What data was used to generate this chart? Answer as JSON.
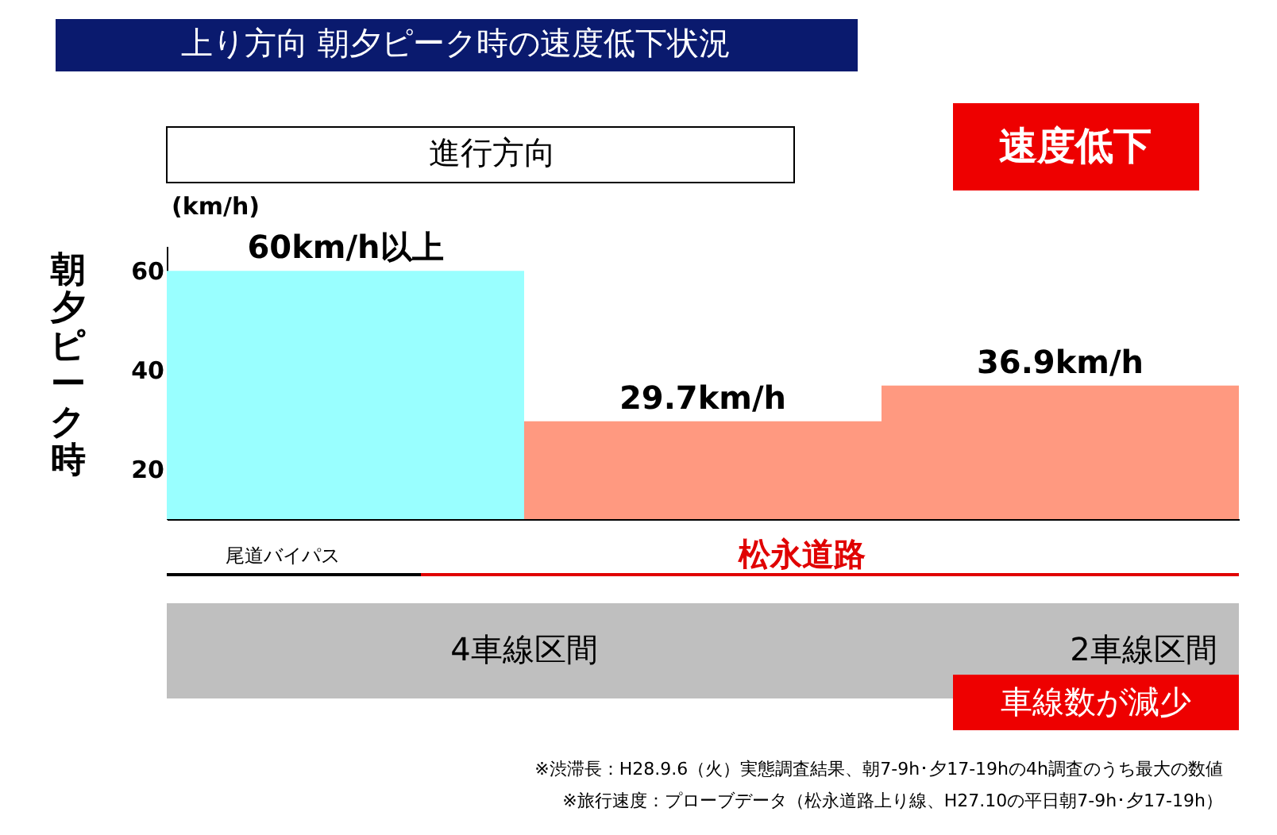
{
  "chart_data": {
    "type": "bar",
    "title": "上り方向 朝夕ピーク時の速度低下状況",
    "ylabel": "朝夕ピーク時",
    "categories": [
      null,
      null,
      null
    ],
    "values": [
      60,
      29.7,
      36.9
    ],
    "colors": [
      "#99ffff",
      "#ff9980",
      "#ff9980"
    ],
    "value_labels": [
      "60km/h以上",
      "29.7km/h",
      "36.9km/h"
    ],
    "ylim": [
      10,
      65
    ],
    "yticks": [
      20,
      40,
      60
    ],
    "tick_labels": "y",
    "grid": false,
    "annotations": [
      "(km/h)",
      "進行方向",
      "速度低下",
      "尾道バイパス",
      "松永道路",
      "4車線区間",
      "2車線区間",
      "車線数が減少",
      "※渋滞長：H28.9.6（火）実態調査結果、朝7-9h･夕17-19hの4h調査のうち最大の数値",
      "※旅行速度：プローブデータ（松永道路上り線、H27.10の平日朝7-9h･夕17-19h）"
    ]
  }
}
